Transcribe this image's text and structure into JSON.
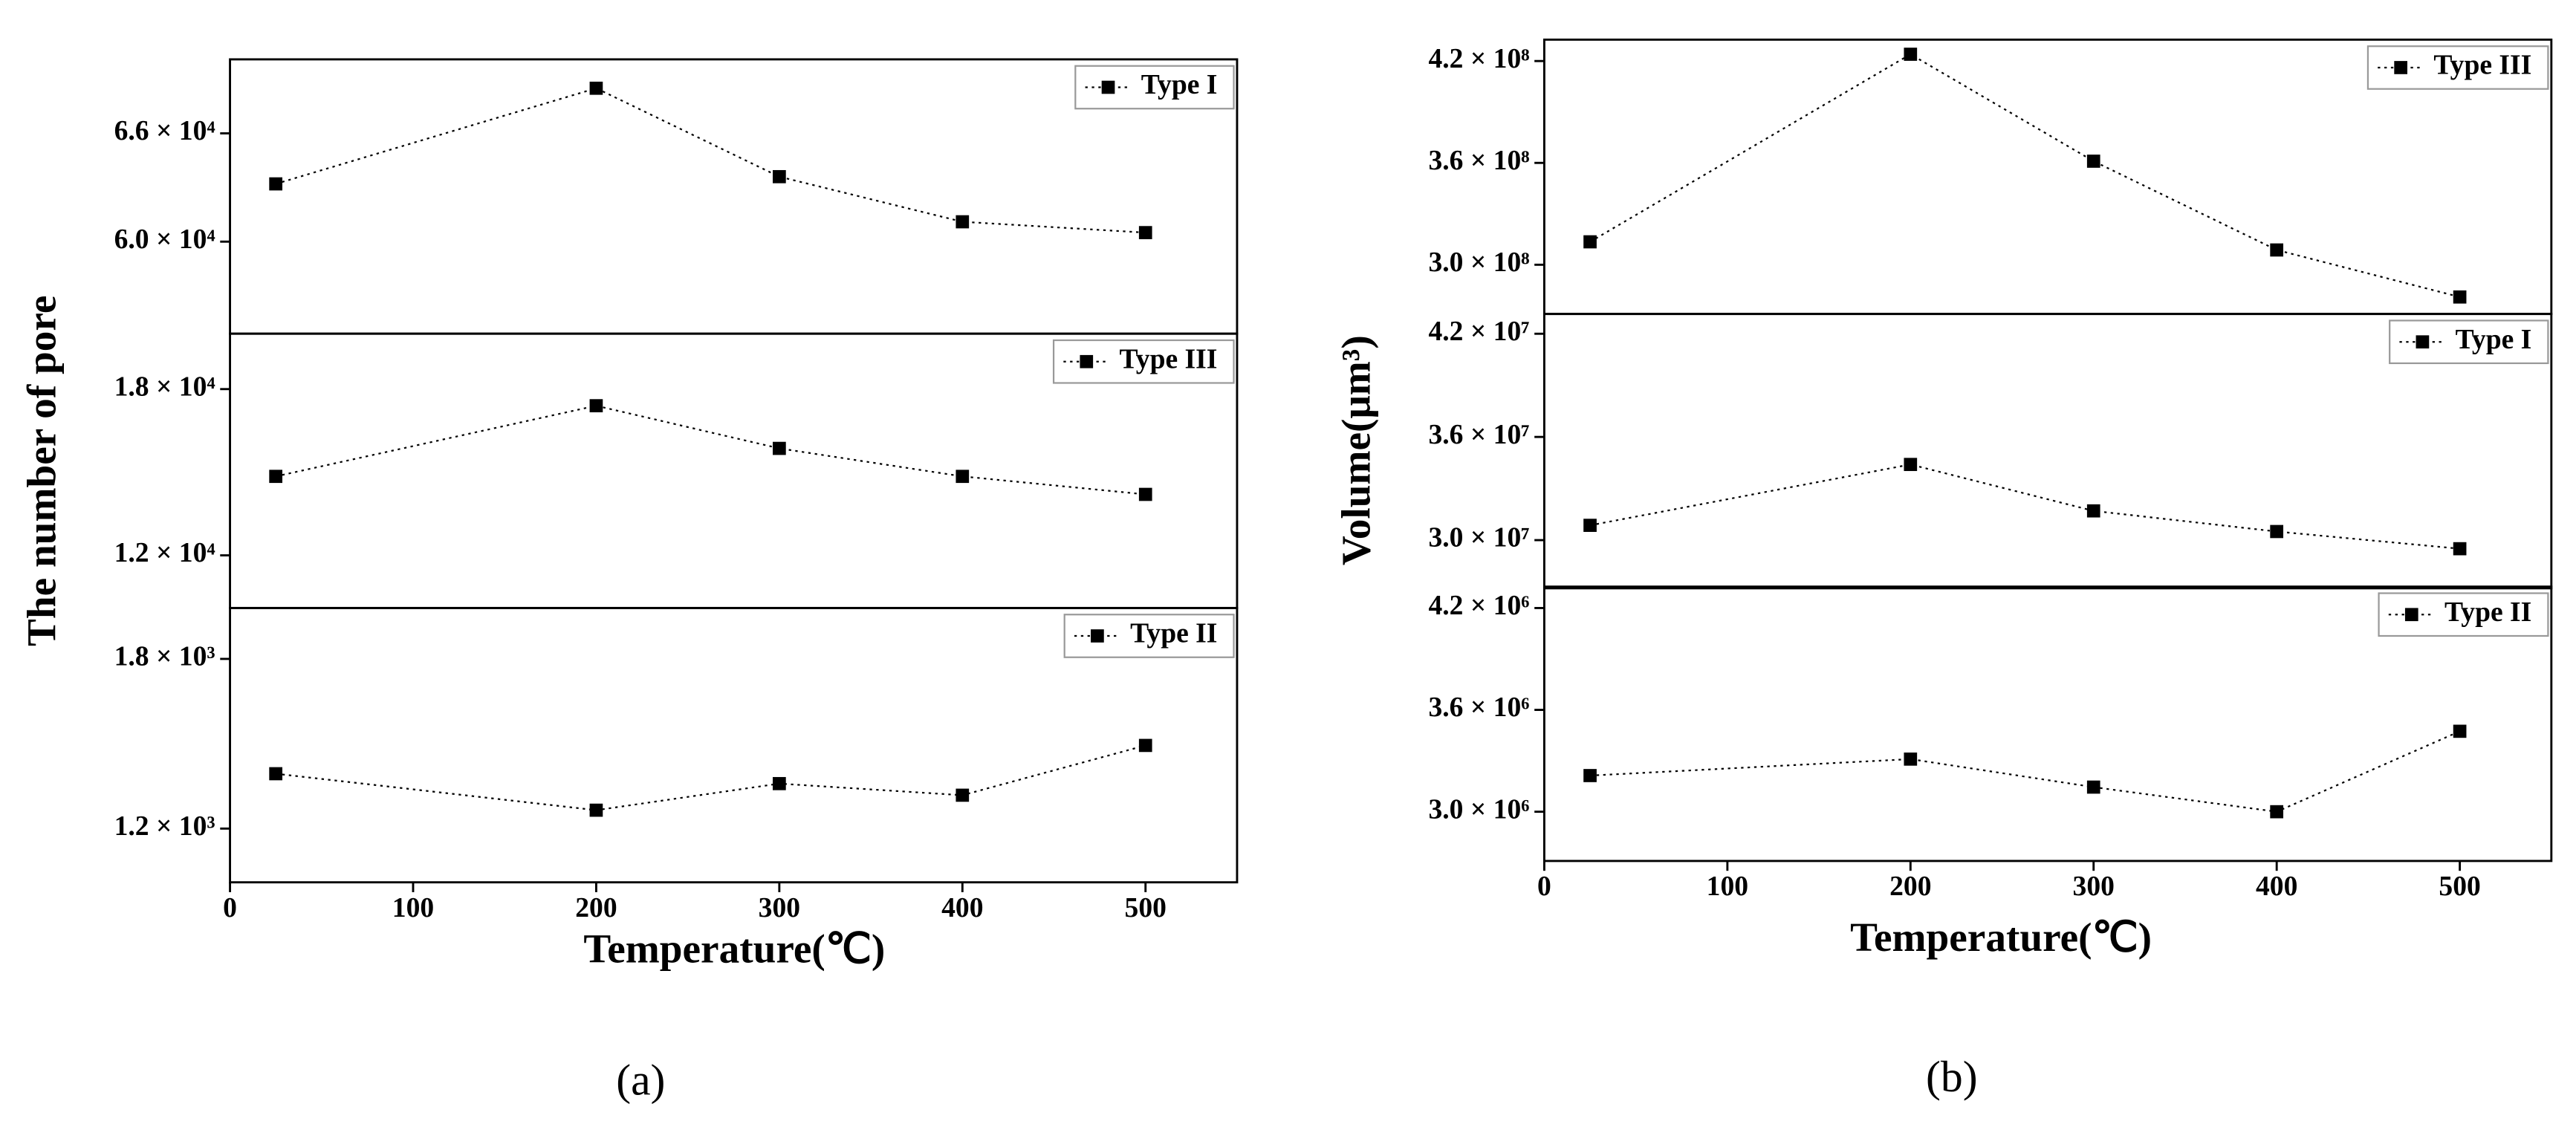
{
  "chart_data": [
    {
      "type": "line",
      "series": [
        {
          "name": "Type I",
          "color": "#000000",
          "values": [
            63200,
            68500,
            63600,
            61100,
            60500
          ]
        }
      ],
      "x": [
        25,
        200,
        300,
        400,
        500
      ],
      "xlim": [
        0,
        550
      ],
      "ylim": [
        54900,
        70100
      ],
      "yticks": [
        {
          "value": 60000,
          "label": "6.0 × 10⁴"
        },
        {
          "value": 66000,
          "label": "6.6 × 10⁴"
        }
      ],
      "legend": "upper right"
    },
    {
      "type": "line",
      "series": [
        {
          "name": "Type III",
          "color": "#000000",
          "values": [
            14850,
            17400,
            15860,
            14850,
            14200
          ]
        }
      ],
      "x": [
        25,
        200,
        300,
        400,
        500
      ],
      "xlim": [
        0,
        550
      ],
      "ylim": [
        10100,
        20000
      ],
      "yticks": [
        {
          "value": 12000,
          "label": "1.2 × 10⁴"
        },
        {
          "value": 18000,
          "label": "1.8 × 10⁴"
        }
      ],
      "legend": "upper right",
      "ylabel": "The number of pore"
    },
    {
      "type": "line",
      "series": [
        {
          "name": "Type II",
          "color": "#000000",
          "values": [
            1394,
            1265,
            1359,
            1318,
            1494
          ]
        }
      ],
      "x": [
        25,
        200,
        300,
        400,
        500
      ],
      "xlim": [
        0,
        550
      ],
      "ylim": [
        1010,
        1980
      ],
      "yticks": [
        {
          "value": 1200,
          "label": "1.2 × 10³"
        },
        {
          "value": 1800,
          "label": "1.8 × 10³"
        }
      ],
      "legend": "upper right",
      "xticks": [
        0,
        100,
        200,
        300,
        400,
        500
      ],
      "xlabel": "Temperature(℃)",
      "caption": "(a)"
    },
    {
      "type": "line",
      "series": [
        {
          "name": "Type III",
          "color": "#000000",
          "values": [
            313500000,
            424000000,
            361000000,
            308700000,
            281000000
          ]
        }
      ],
      "x": [
        25,
        200,
        300,
        400,
        500
      ],
      "xlim": [
        0,
        550
      ],
      "ylim": [
        271000000,
        432600000
      ],
      "yticks": [
        {
          "value": 300000000,
          "label": "3.0 × 10⁸"
        },
        {
          "value": 360000000,
          "label": "3.6 × 10⁸"
        },
        {
          "value": 420000000,
          "label": "4.2 × 10⁸"
        }
      ],
      "legend": "upper right"
    },
    {
      "type": "line",
      "series": [
        {
          "name": "Type I",
          "color": "#000000",
          "values": [
            30860000,
            34400000,
            31700000,
            30500000,
            29500000
          ]
        }
      ],
      "x": [
        25,
        200,
        300,
        400,
        500
      ],
      "xlim": [
        0,
        550
      ],
      "ylim": [
        27200000,
        43150000
      ],
      "yticks": [
        {
          "value": 30000000,
          "label": "3.0 × 10⁷"
        },
        {
          "value": 36000000,
          "label": "3.6 × 10⁷"
        },
        {
          "value": 42000000,
          "label": "4.2 × 10⁷"
        }
      ],
      "legend": "upper right",
      "ylabel": "Volume(μm³)"
    },
    {
      "type": "line",
      "series": [
        {
          "name": "Type II",
          "color": "#000000",
          "values": [
            3213000,
            3310000,
            3145000,
            3000000,
            3474000
          ]
        }
      ],
      "x": [
        25,
        200,
        300,
        400,
        500
      ],
      "xlim": [
        0,
        550
      ],
      "ylim": [
        2710000,
        4326000
      ],
      "yticks": [
        {
          "value": 3000000,
          "label": "3.0 × 10⁶"
        },
        {
          "value": 3600000,
          "label": "3.6 × 10⁶"
        },
        {
          "value": 4200000,
          "label": "4.2 × 10⁶"
        }
      ],
      "legend": "upper right",
      "xticks": [
        0,
        100,
        200,
        300,
        400,
        500
      ],
      "xlabel": "Temperature(℃)",
      "caption": "(b)"
    }
  ]
}
